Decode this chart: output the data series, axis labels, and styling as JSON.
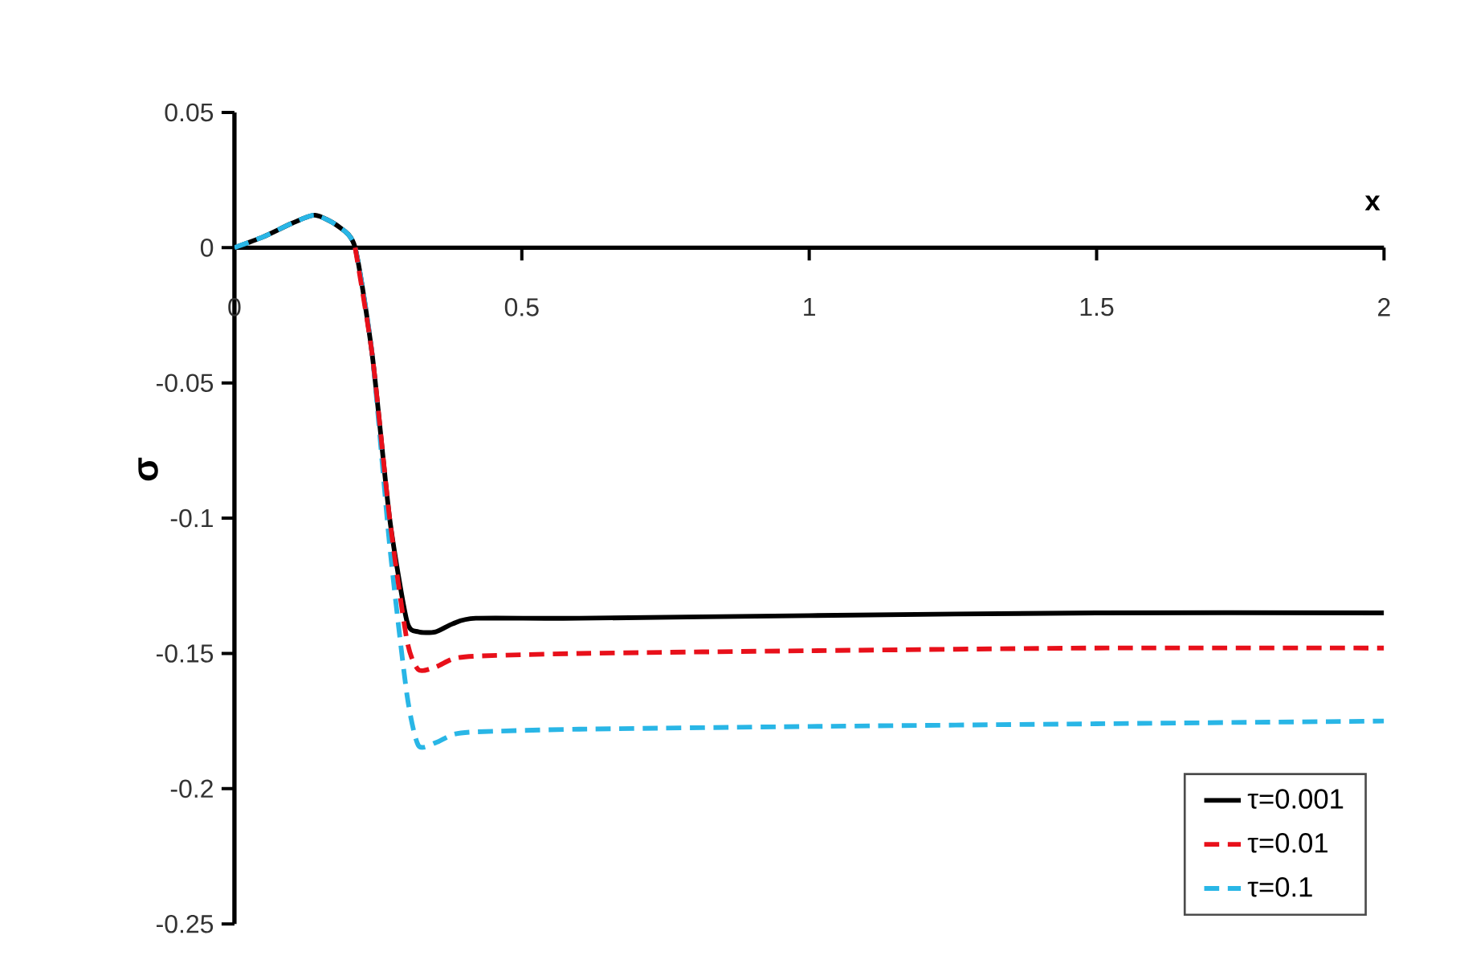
{
  "chart_data": {
    "type": "line",
    "xlabel": "x",
    "ylabel": "σ",
    "xlim": [
      0,
      2
    ],
    "ylim": [
      -0.25,
      0.05
    ],
    "xticks": [
      0,
      0.5,
      1,
      1.5,
      2
    ],
    "yticks": [
      -0.25,
      -0.2,
      -0.15,
      -0.1,
      -0.05,
      0,
      0.05
    ],
    "x": [
      0,
      0.05,
      0.1,
      0.14,
      0.18,
      0.21,
      0.24,
      0.27,
      0.3,
      0.32,
      0.35,
      0.38,
      0.42,
      0.6,
      1,
      1.5,
      2
    ],
    "legend": "bottom right",
    "grid": false,
    "marker": "none",
    "series": [
      {
        "name": "τ=0.001",
        "color": "#000000",
        "line_style": "solid",
        "values": [
          0,
          0.004,
          0.009,
          0.012,
          0.008,
          0,
          -0.04,
          -0.1,
          -0.138,
          -0.142,
          -0.142,
          -0.139,
          -0.137,
          -0.137,
          -0.136,
          -0.135,
          -0.135
        ]
      },
      {
        "name": "τ=0.01",
        "color": "#e8101a",
        "line_style": "dashed",
        "values": [
          null,
          null,
          null,
          null,
          null,
          0,
          -0.04,
          -0.1,
          -0.145,
          -0.156,
          -0.155,
          -0.152,
          -0.151,
          -0.15,
          -0.149,
          -0.148,
          -0.148
        ]
      },
      {
        "name": "τ=0.1",
        "color": "#29b6e6",
        "line_style": "dashed",
        "values": [
          0,
          0.004,
          0.009,
          0.012,
          0.008,
          0,
          -0.04,
          -0.11,
          -0.165,
          -0.184,
          -0.183,
          -0.18,
          -0.179,
          -0.178,
          -0.177,
          -0.176,
          -0.175
        ]
      }
    ]
  }
}
